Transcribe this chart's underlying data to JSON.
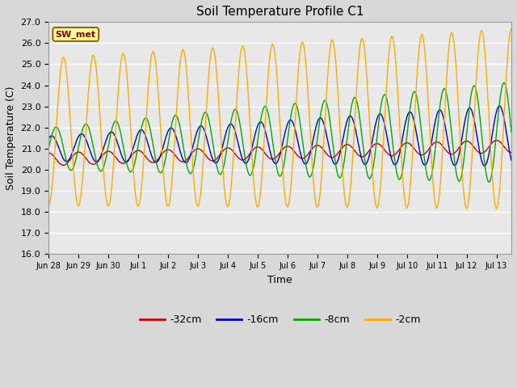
{
  "title": "Soil Temperature Profile C1",
  "xlabel": "Time",
  "ylabel": "Soil Temperature (C)",
  "ylim": [
    16.0,
    27.0
  ],
  "yticks": [
    16.0,
    17.0,
    18.0,
    19.0,
    20.0,
    21.0,
    22.0,
    23.0,
    24.0,
    25.0,
    26.0,
    27.0
  ],
  "xtick_labels": [
    "Jun 28",
    "Jun 29",
    "Jun 30",
    "Jul 1",
    "Jul 2",
    "Jul 3",
    "Jul 4",
    "Jul 5",
    "Jul 6",
    "Jul 7",
    "Jul 8",
    "Jul 9",
    "Jul 10",
    "Jul 11",
    "Jul 12",
    "Jul 13"
  ],
  "n_days": 15.5,
  "series": [
    {
      "label": "-32cm",
      "color": "#cc0000"
    },
    {
      "label": "-16cm",
      "color": "#0000cc"
    },
    {
      "label": "-8cm",
      "color": "#00aa00"
    },
    {
      "label": "-2cm",
      "color": "#ffaa00"
    }
  ],
  "annotation_text": "SW_met",
  "annotation_bg": "#ffff99",
  "annotation_border": "#996600",
  "fig_bg": "#d8d8d8",
  "plot_bg": "#e8e8e8",
  "grid_color": "#ffffff",
  "title_fontsize": 11,
  "axis_label_fontsize": 9,
  "tick_fontsize": 8
}
